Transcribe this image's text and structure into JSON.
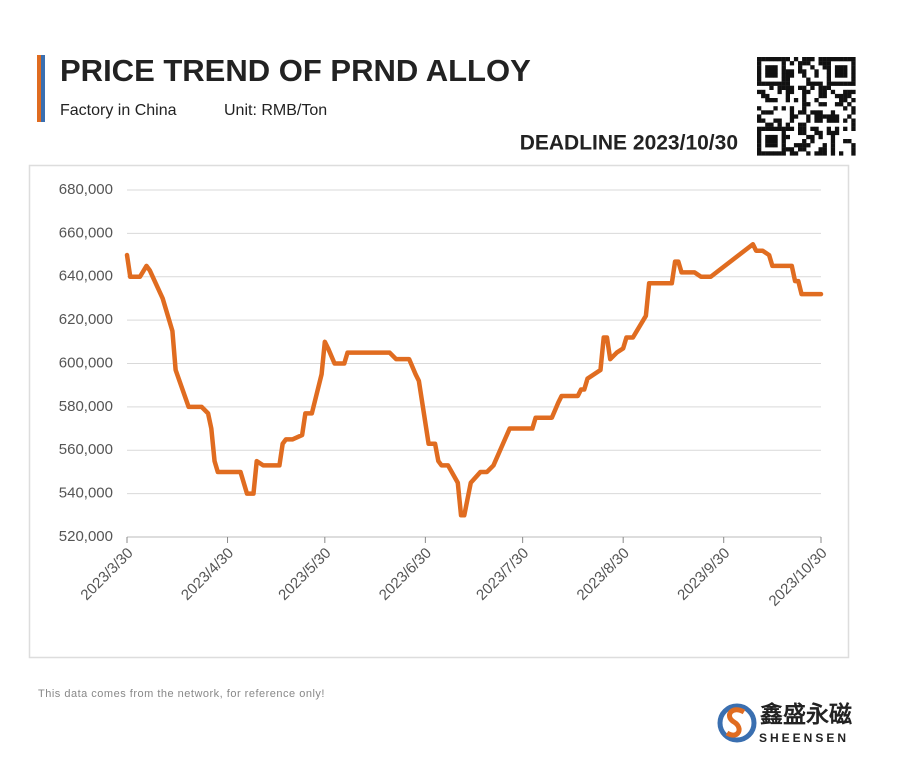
{
  "chart_data": {
    "type": "line",
    "title": "PRICE TREND OF PRND ALLOY",
    "subtitle": [
      "Factory in China",
      "Unit: RMB/Ton"
    ],
    "deadline": "DEADLINE 2023/10/30",
    "note": "This data comes from the network, for reference only!",
    "brand": {
      "name": "鑫盛永磁",
      "latin": "SHEENSEN"
    },
    "x": [
      "2023/3/30",
      "2023/3/31",
      "2023/4/3",
      "2023/4/5",
      "2023/4/6",
      "2023/4/10",
      "2023/4/13",
      "2023/4/14",
      "2023/4/18",
      "2023/4/22",
      "2023/4/24",
      "2023/4/25",
      "2023/4/26",
      "2023/4/27",
      "2023/5/4",
      "2023/5/6",
      "2023/5/8",
      "2023/5/9",
      "2023/5/11",
      "2023/5/16",
      "2023/5/17",
      "2023/5/18",
      "2023/5/20",
      "2023/5/23",
      "2023/5/24",
      "2023/5/26",
      "2023/5/29",
      "2023/5/30",
      "2023/5/31",
      "2023/6/2",
      "2023/6/5",
      "2023/6/6",
      "2023/6/19",
      "2023/6/21",
      "2023/6/25",
      "2023/6/27",
      "2023/6/28",
      "2023/7/1",
      "2023/7/3",
      "2023/7/4",
      "2023/7/5",
      "2023/7/7",
      "2023/7/10",
      "2023/7/11",
      "2023/7/12",
      "2023/7/14",
      "2023/7/17",
      "2023/7/19",
      "2023/7/21",
      "2023/7/26",
      "2023/8/2",
      "2023/8/3",
      "2023/8/8",
      "2023/8/10",
      "2023/8/11",
      "2023/8/16",
      "2023/8/17",
      "2023/8/18",
      "2023/8/19",
      "2023/8/23",
      "2023/8/24",
      "2023/8/25",
      "2023/8/26",
      "2023/8/28",
      "2023/8/30",
      "2023/8/31",
      "2023/9/2",
      "2023/9/6",
      "2023/9/7",
      "2023/9/14",
      "2023/9/15",
      "2023/9/16",
      "2023/9/17",
      "2023/9/21",
      "2023/9/23",
      "2023/9/26",
      "2023/10/9",
      "2023/10/10",
      "2023/10/12",
      "2023/10/14",
      "2023/10/15",
      "2023/10/21",
      "2023/10/22",
      "2023/10/23",
      "2023/10/24",
      "2023/10/30"
    ],
    "series": [
      {
        "name": "PrNd Alloy",
        "color": "#e06c20",
        "values": [
          650000,
          640000,
          640000,
          645000,
          643000,
          630000,
          615000,
          597000,
          580000,
          580000,
          577000,
          570000,
          555000,
          550000,
          550000,
          540000,
          540000,
          555000,
          553000,
          553000,
          563000,
          565000,
          565000,
          567000,
          577000,
          577000,
          595000,
          610000,
          607000,
          600000,
          600000,
          605000,
          605000,
          602000,
          602000,
          595000,
          592000,
          563000,
          563000,
          555000,
          553000,
          553000,
          545000,
          530000,
          530000,
          545000,
          550000,
          550000,
          553000,
          570000,
          570000,
          575000,
          575000,
          582000,
          585000,
          585000,
          588000,
          588000,
          593000,
          597000,
          612000,
          612000,
          602000,
          605000,
          607000,
          612000,
          612000,
          622000,
          637000,
          637000,
          647000,
          647000,
          642000,
          642000,
          640000,
          640000,
          655000,
          652000,
          652000,
          650000,
          645000,
          645000,
          638000,
          638000,
          632000,
          632000
        ]
      }
    ],
    "xlim": [
      "2023/3/30",
      "2023/10/30"
    ],
    "xticks": [
      "2023/3/30",
      "2023/4/30",
      "2023/5/30",
      "2023/6/30",
      "2023/7/30",
      "2023/8/30",
      "2023/9/30",
      "2023/10/30"
    ],
    "ylim": [
      520000,
      680000
    ],
    "yticks": [
      {
        "value": 520000,
        "label": "520,000"
      },
      {
        "value": 540000,
        "label": "540,000"
      },
      {
        "value": 560000,
        "label": "560,000"
      },
      {
        "value": 580000,
        "label": "580,000"
      },
      {
        "value": 600000,
        "label": "600,000"
      },
      {
        "value": 620000,
        "label": "620,000"
      },
      {
        "value": 640000,
        "label": "640,000"
      },
      {
        "value": 660000,
        "label": "660,000"
      },
      {
        "value": 680000,
        "label": "680,000"
      }
    ],
    "grid": true
  }
}
